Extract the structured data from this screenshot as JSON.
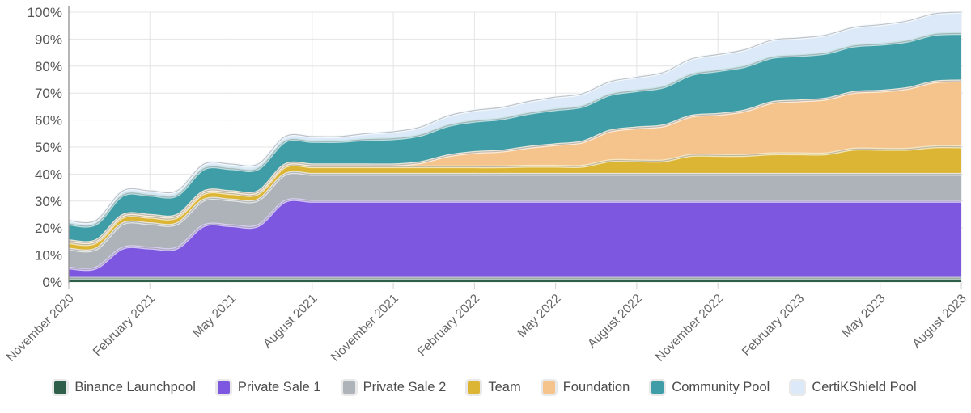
{
  "chart_data": {
    "type": "area",
    "stacked": true,
    "title": "",
    "xlabel": "",
    "ylabel": "",
    "y_range": [
      0,
      100
    ],
    "grid": true,
    "legend_position": "bottom",
    "y_tick_labels": [
      "0%",
      "10%",
      "20%",
      "30%",
      "40%",
      "50%",
      "60%",
      "70%",
      "80%",
      "90%",
      "100%"
    ],
    "x_tick_labels": [
      "November 2020",
      "February 2021",
      "May 2021",
      "August 2021",
      "November 2021",
      "February 2022",
      "May 2022",
      "August 2022",
      "November 2022",
      "February 2023",
      "May 2023",
      "August 2023"
    ],
    "x_points_per_tick": 3,
    "series": [
      {
        "name": "Binance Launchpool",
        "color": "#2d5f4b",
        "values": [
          1.4,
          1.4,
          1.4,
          1.4,
          1.4,
          1.4,
          1.4,
          1.4,
          1.4,
          1.4,
          1.4,
          1.4,
          1.4,
          1.4,
          1.4,
          1.4,
          1.4,
          1.4,
          1.4,
          1.4,
          1.4,
          1.4,
          1.4,
          1.4,
          1.4,
          1.4,
          1.4,
          1.4,
          1.4,
          1.4,
          1.4,
          1.4,
          1.4,
          1.4
        ]
      },
      {
        "name": "Private Sale 1",
        "color": "#7e57e0",
        "values": [
          3.8,
          3.8,
          11.2,
          11.2,
          11.2,
          19.5,
          19.5,
          19.5,
          28.5,
          28.5,
          28.5,
          28.5,
          28.5,
          28.5,
          28.5,
          28.5,
          28.5,
          28.5,
          28.5,
          28.5,
          28.5,
          28.5,
          28.5,
          28.5,
          28.5,
          28.5,
          28.5,
          28.5,
          28.5,
          28.5,
          28.5,
          28.5,
          28.5,
          28.5
        ]
      },
      {
        "name": "Private Sale 2",
        "color": "#aeb3b9",
        "values": [
          7.0,
          7.0,
          9.0,
          9.0,
          9.0,
          9.5,
          9.5,
          9.5,
          10.0,
          10.0,
          10.0,
          10.0,
          10.0,
          10.0,
          10.0,
          10.0,
          10.0,
          10.0,
          10.0,
          10.0,
          10.0,
          10.0,
          10.0,
          10.0,
          10.0,
          10.0,
          10.0,
          10.0,
          10.0,
          10.0,
          10.0,
          10.0,
          10.0,
          10.0
        ]
      },
      {
        "name": "Team",
        "color": "#ddb535",
        "values": [
          2.4,
          2.4,
          2.4,
          2.4,
          2.4,
          2.4,
          2.4,
          2.4,
          2.8,
          2.8,
          2.8,
          2.8,
          2.8,
          2.8,
          2.8,
          2.8,
          2.8,
          3.0,
          3.0,
          3.0,
          5.0,
          5.0,
          5.0,
          7.0,
          7.0,
          7.0,
          7.6,
          7.6,
          7.6,
          9.3,
          9.3,
          9.3,
          10.2,
          10.2
        ]
      },
      {
        "name": "Foundation",
        "color": "#f5c48d",
        "values": [
          0.7,
          0.7,
          0.7,
          0.7,
          0.7,
          0.7,
          0.7,
          0.7,
          0.7,
          0.7,
          0.7,
          0.7,
          0.7,
          1.5,
          4.0,
          5.3,
          5.8,
          7.0,
          8.0,
          9.0,
          11.0,
          12.2,
          13.0,
          14.5,
          15.2,
          16.5,
          19.0,
          19.6,
          20.3,
          21.0,
          21.5,
          22.5,
          24.0,
          24.4
        ]
      },
      {
        "name": "Community Pool",
        "color": "#3f9da7",
        "values": [
          6.2,
          6.2,
          7.5,
          7.5,
          7.5,
          8.5,
          8.5,
          8.5,
          8.7,
          8.7,
          8.7,
          9.4,
          9.7,
          10.2,
          11.2,
          11.6,
          12.0,
          12.6,
          13.0,
          13.2,
          13.5,
          13.8,
          14.4,
          15.4,
          16.2,
          16.5,
          16.7,
          16.8,
          17.0,
          17.2,
          17.4,
          17.5,
          17.6,
          17.6
        ]
      },
      {
        "name": "CertiKShield Pool",
        "color": "#dbe9f8",
        "values": [
          1.3,
          1.3,
          1.6,
          1.6,
          1.6,
          1.7,
          1.7,
          1.7,
          1.8,
          1.8,
          1.8,
          2.2,
          2.6,
          3.0,
          3.6,
          4.0,
          4.2,
          4.4,
          4.6,
          4.7,
          4.8,
          5.0,
          5.4,
          5.8,
          6.0,
          6.2,
          6.4,
          6.5,
          6.7,
          6.9,
          7.2,
          7.5,
          7.7,
          7.9
        ]
      }
    ]
  },
  "style": {
    "background": "#ffffff",
    "grid_color": "#e4e4e4",
    "axis_color": "#8f8f8f",
    "tick_color": "#cfcfcf",
    "y_label_color": "#555555",
    "x_label_color": "#666666",
    "legend_text_color": "#4b4b4b",
    "boundary_line_color": "rgba(120,124,128,0.45)",
    "boundary_halo_color": "rgba(255,255,255,0.8)"
  }
}
